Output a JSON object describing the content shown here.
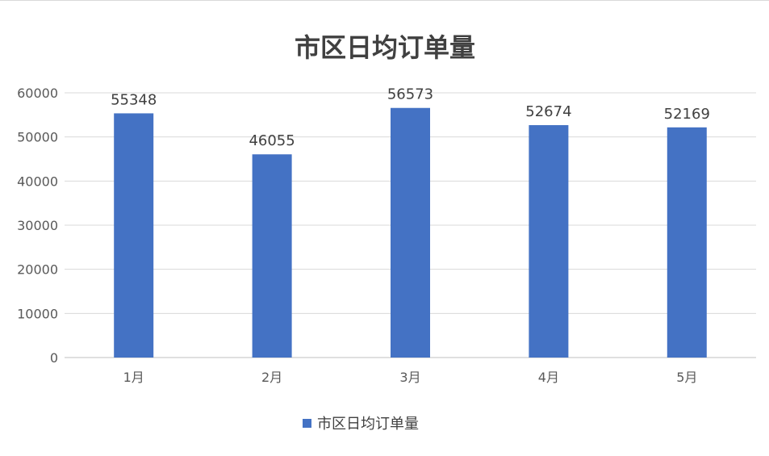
{
  "chart_data": {
    "type": "bar",
    "title": "市区日均订单量",
    "categories": [
      "1月",
      "2月",
      "3月",
      "4月",
      "5月"
    ],
    "series": [
      {
        "name": "市区日均订单量",
        "values": [
          55348,
          46055,
          56573,
          52674,
          52169
        ],
        "color": "#4472c4"
      }
    ],
    "yticks": [
      "0",
      "10000",
      "20000",
      "30000",
      "40000",
      "50000",
      "60000"
    ],
    "ylim": [
      0,
      60000
    ],
    "xlabel": "",
    "ylabel": "",
    "grid": true,
    "legend": "bottom",
    "data_labels": true
  }
}
